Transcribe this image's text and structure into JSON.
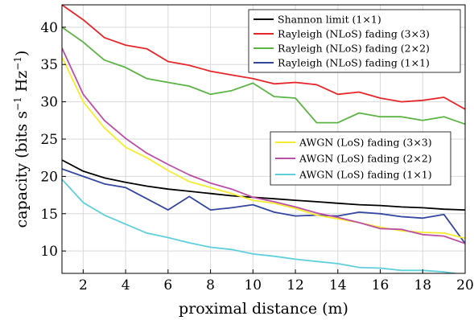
{
  "chart_data": {
    "type": "line",
    "xlabel": "proximal distance (m)",
    "ylabel_main": "capacity (bits s",
    "ylabel_sup1": "−1",
    "ylabel_mid": " Hz",
    "ylabel_sup2": "−1",
    "ylabel_end": ")",
    "xlim": [
      1,
      20
    ],
    "ylim": [
      7,
      43
    ],
    "xticks": [
      2,
      4,
      6,
      8,
      10,
      12,
      14,
      16,
      18,
      20
    ],
    "yticks": [
      10,
      15,
      20,
      25,
      30,
      35,
      40
    ],
    "grid": true,
    "x": [
      1,
      2,
      3,
      4,
      5,
      6,
      7,
      8,
      9,
      10,
      11,
      12,
      13,
      14,
      15,
      16,
      17,
      18,
      19,
      20
    ],
    "legends": [
      {
        "placement": "top-right",
        "entries": [
          0,
          1,
          2,
          3
        ]
      },
      {
        "placement": "center-right",
        "entries": [
          4,
          5,
          6
        ]
      }
    ],
    "series": [
      {
        "name": "Shannon limit (1×1)",
        "color": "#000000",
        "values": [
          22.2,
          20.7,
          19.8,
          19.2,
          18.7,
          18.3,
          18.0,
          17.7,
          17.4,
          17.2,
          17.0,
          16.8,
          16.6,
          16.4,
          16.2,
          16.1,
          15.9,
          15.8,
          15.6,
          15.5
        ]
      },
      {
        "name": "Rayleigh (NLoS) fading (3×3)",
        "color": "#e8262a",
        "values": [
          43.0,
          41.0,
          38.6,
          37.6,
          37.1,
          35.4,
          34.9,
          34.1,
          33.6,
          33.1,
          32.4,
          32.6,
          32.3,
          31.0,
          31.3,
          30.5,
          30.0,
          30.2,
          30.6,
          29.0
        ]
      },
      {
        "name": "Rayleigh (NLoS) fading (2×2)",
        "color": "#5cb445",
        "values": [
          40.0,
          38.0,
          35.6,
          34.6,
          33.1,
          32.6,
          32.1,
          31.0,
          31.5,
          32.5,
          30.7,
          30.5,
          27.2,
          27.2,
          28.5,
          28.0,
          28.0,
          27.5,
          28.0,
          27.0
        ]
      },
      {
        "name": "Rayleigh (NLoS) fading (1×1)",
        "color": "#3346a0",
        "values": [
          21.0,
          20.0,
          19.0,
          18.5,
          17.0,
          15.5,
          17.3,
          15.5,
          15.8,
          16.2,
          15.2,
          14.7,
          14.8,
          14.7,
          15.2,
          15.0,
          14.6,
          14.4,
          14.9,
          11.0
        ]
      },
      {
        "name": "AWGN (LoS) fading (3×3)",
        "color": "#f5ec2f",
        "values": [
          36.0,
          30.0,
          26.5,
          23.9,
          22.5,
          20.8,
          19.3,
          18.5,
          17.7,
          16.8,
          16.4,
          15.7,
          14.8,
          14.3,
          13.8,
          13.2,
          12.7,
          12.5,
          12.4,
          11.7
        ]
      },
      {
        "name": "AWGN (LoS) fading (2×2)",
        "color": "#bb4fa6",
        "values": [
          37.2,
          31.0,
          27.5,
          25.1,
          23.1,
          21.6,
          20.2,
          19.1,
          18.3,
          17.2,
          16.6,
          15.9,
          15.1,
          14.5,
          13.8,
          13.0,
          12.9,
          12.2,
          12.0,
          11.0
        ]
      },
      {
        "name": "AWGN (LoS) fading (1×1)",
        "color": "#5fcfdc",
        "values": [
          19.6,
          16.5,
          14.8,
          13.6,
          12.4,
          11.8,
          11.1,
          10.5,
          10.2,
          9.6,
          9.3,
          8.9,
          8.6,
          8.3,
          7.8,
          7.7,
          7.4,
          7.4,
          7.2,
          6.8
        ]
      }
    ]
  }
}
